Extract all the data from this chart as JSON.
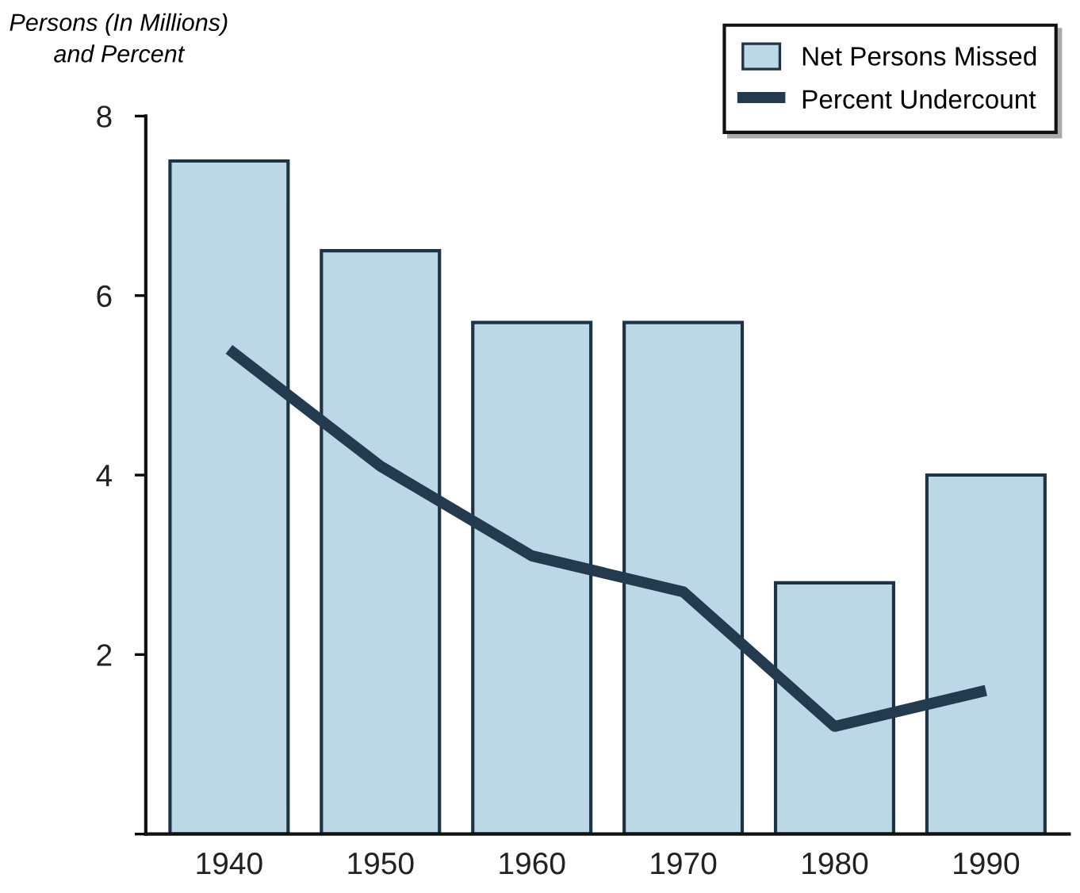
{
  "chart_data": {
    "type": "bar",
    "ylabel": "Persons (In Millions)\nand Percent",
    "categories": [
      "1940",
      "1950",
      "1960",
      "1970",
      "1980",
      "1990"
    ],
    "series": [
      {
        "name": "Net Persons Missed",
        "color": "#bcd7e5",
        "values": [
          7.5,
          6.5,
          5.7,
          5.7,
          2.8,
          4.0
        ]
      },
      {
        "name": "Percent Undercount",
        "type": "line",
        "color": "#243a4f",
        "values": [
          5.4,
          4.1,
          3.1,
          2.7,
          1.2,
          1.6
        ]
      }
    ],
    "ylim": [
      0,
      8
    ],
    "yticks": [
      {
        "value": 0,
        "label": null
      },
      2,
      4,
      6,
      8
    ],
    "grid": false,
    "legend": "top right",
    "marker": "none",
    "line_style": "solid"
  }
}
